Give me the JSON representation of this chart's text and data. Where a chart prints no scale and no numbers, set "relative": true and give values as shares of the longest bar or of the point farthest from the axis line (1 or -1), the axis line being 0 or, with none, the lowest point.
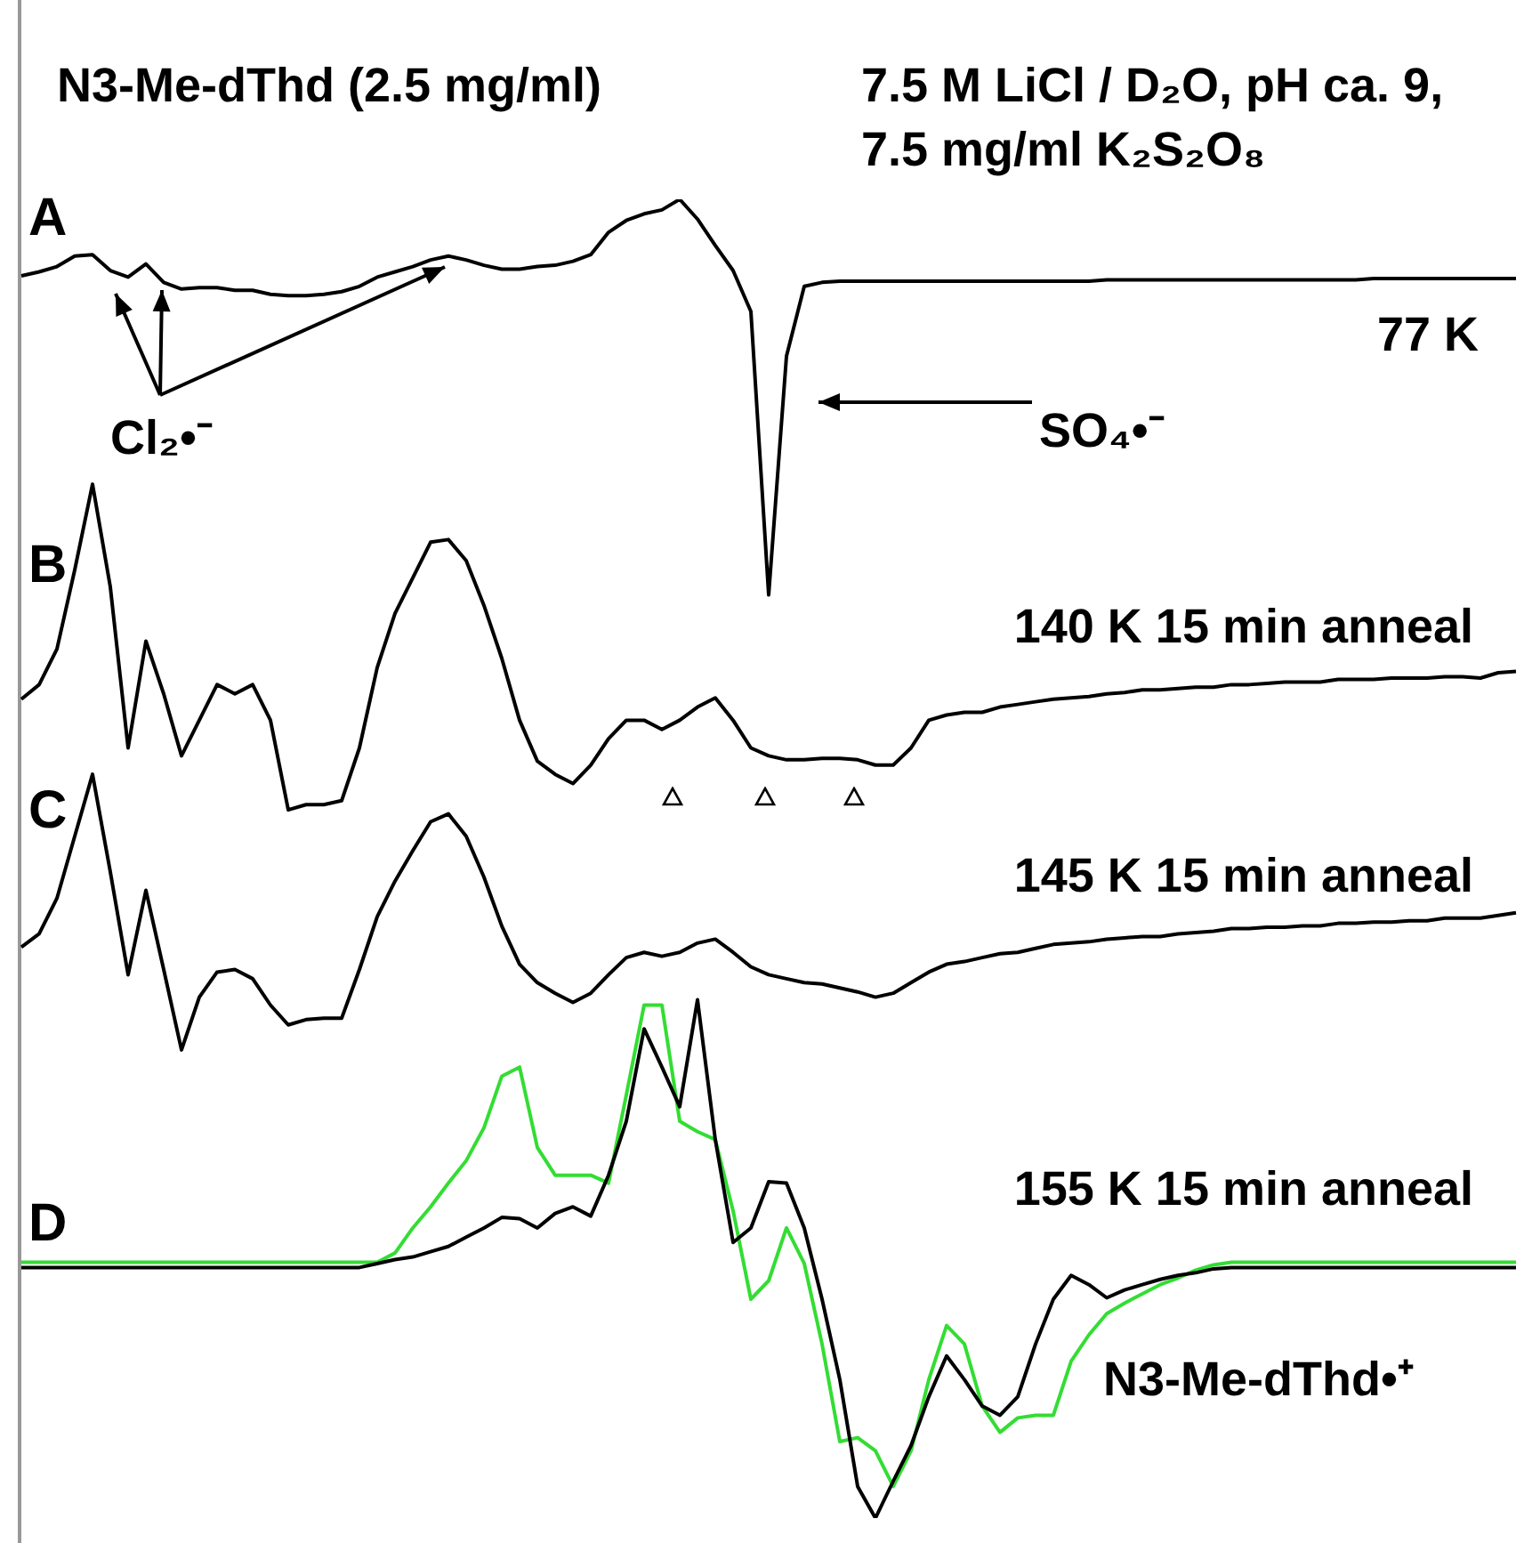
{
  "chart_data": {
    "type": "line",
    "relative": true,
    "title": "N3-Me-dThd (2.5 mg/ml)",
    "subtitle": "7.5 M LiCl / D₂O, pH ca. 9, 7.5 mg/ml K₂S₂O₈",
    "annotations": [
      "A",
      "B",
      "C",
      "D",
      "Cl₂•⁻",
      "SO₄•⁻"
    ],
    "categories": [
      null,
      null,
      null,
      null,
      null,
      null,
      null,
      null,
      null,
      null,
      null,
      null,
      null,
      null,
      null,
      null,
      null,
      null,
      null,
      null,
      null,
      null,
      null,
      null,
      null,
      null,
      null,
      null,
      null,
      null,
      null,
      null,
      null,
      null,
      null,
      null,
      null,
      null,
      null,
      null,
      null,
      null,
      null,
      null,
      null,
      null,
      null,
      null,
      null,
      null,
      null,
      null,
      null,
      null,
      null,
      null,
      null,
      null,
      null,
      null,
      null,
      null,
      null,
      null,
      null,
      null,
      null,
      null,
      null,
      null,
      null,
      null,
      null,
      null,
      null,
      null,
      null,
      null,
      null,
      null,
      null,
      null,
      null,
      null,
      null
    ],
    "series": [
      {
        "name": "77 K",
        "color": "#000000",
        "values": [
          0.942,
          0.945,
          0.949,
          0.957,
          0.958,
          0.946,
          0.941,
          0.951,
          0.937,
          0.932,
          0.933,
          0.933,
          0.931,
          0.931,
          0.928,
          0.927,
          0.927,
          0.928,
          0.93,
          0.934,
          0.941,
          0.945,
          0.949,
          0.954,
          0.957,
          0.954,
          0.95,
          0.947,
          0.947,
          0.949,
          0.95,
          0.953,
          0.958,
          0.975,
          0.984,
          0.989,
          0.992,
          1,
          0.985,
          0.965,
          0.946,
          0.915,
          0.7,
          0.881,
          0.934,
          0.937,
          0.938,
          0.938,
          0.938,
          0.938,
          0.938,
          0.938,
          0.938,
          0.938,
          0.938,
          0.938,
          0.938,
          0.938,
          0.938,
          0.938,
          0.938,
          0.939,
          0.939,
          0.939,
          0.939,
          0.939,
          0.939,
          0.939,
          0.939,
          0.939,
          0.939,
          0.939,
          0.939,
          0.939,
          0.939,
          0.939,
          0.94,
          0.94,
          0.94,
          0.94,
          0.94,
          0.94,
          0.94,
          0.94,
          0.94
        ]
      },
      {
        "name": "140 K 15 min anneal",
        "color": "#000000",
        "values": [
          0.621,
          0.632,
          0.659,
          0.719,
          0.784,
          0.706,
          0.584,
          0.665,
          0.625,
          0.578,
          0.605,
          0.632,
          0.625,
          0.632,
          0.605,
          0.537,
          0.541,
          0.541,
          0.544,
          0.584,
          0.645,
          0.686,
          0.713,
          0.74,
          0.742,
          0.726,
          0.692,
          0.652,
          0.605,
          0.574,
          0.564,
          0.557,
          0.571,
          0.591,
          0.605,
          0.605,
          0.598,
          0.605,
          0.615,
          0.622,
          0.605,
          0.584,
          0.578,
          0.575,
          0.575,
          0.576,
          0.576,
          0.575,
          0.571,
          0.571,
          0.584,
          0.605,
          0.609,
          0.611,
          0.611,
          0.615,
          0.617,
          0.619,
          0.621,
          0.622,
          0.623,
          0.625,
          0.626,
          0.628,
          0.628,
          0.629,
          0.63,
          0.63,
          0.632,
          0.632,
          0.633,
          0.634,
          0.634,
          0.634,
          0.636,
          0.636,
          0.636,
          0.637,
          0.637,
          0.637,
          0.638,
          0.638,
          0.637,
          0.641,
          0.642
        ]
      },
      {
        "name": "145 K 15 min anneal",
        "color": "#000000",
        "values": [
          0.433,
          0.443,
          0.47,
          0.517,
          0.564,
          0.49,
          0.412,
          0.476,
          0.416,
          0.355,
          0.395,
          0.414,
          0.416,
          0.409,
          0.389,
          0.374,
          0.378,
          0.379,
          0.379,
          0.416,
          0.456,
          0.483,
          0.506,
          0.528,
          0.534,
          0.517,
          0.486,
          0.449,
          0.42,
          0.406,
          0.398,
          0.391,
          0.398,
          0.412,
          0.425,
          0.429,
          0.426,
          0.429,
          0.436,
          0.439,
          0.429,
          0.418,
          0.412,
          0.409,
          0.406,
          0.405,
          0.402,
          0.399,
          0.395,
          0.398,
          0.406,
          0.414,
          0.42,
          0.422,
          0.425,
          0.428,
          0.429,
          0.432,
          0.435,
          0.436,
          0.437,
          0.439,
          0.44,
          0.441,
          0.441,
          0.443,
          0.444,
          0.445,
          0.447,
          0.447,
          0.448,
          0.448,
          0.449,
          0.449,
          0.451,
          0.451,
          0.452,
          0.452,
          0.453,
          0.453,
          0.455,
          0.455,
          0.455,
          0.457,
          0.459
        ]
      },
      {
        "name": "155 K 15 min anneal",
        "color": "#000000",
        "values": [
          0.19,
          0.19,
          0.19,
          0.19,
          0.19,
          0.19,
          0.19,
          0.19,
          0.19,
          0.19,
          0.19,
          0.19,
          0.19,
          0.19,
          0.19,
          0.19,
          0.19,
          0.19,
          0.19,
          0.19,
          0.193,
          0.196,
          0.198,
          0.202,
          0.206,
          0.213,
          0.22,
          0.228,
          0.227,
          0.22,
          0.231,
          0.236,
          0.229,
          0.26,
          0.301,
          0.371,
          0.342,
          0.312,
          0.393,
          0.287,
          0.209,
          0.22,
          0.255,
          0.254,
          0.22,
          0.166,
          0.105,
          0.024,
          0,
          0.028,
          0.055,
          0.092,
          0.123,
          0.105,
          0.085,
          0.078,
          0.092,
          0.132,
          0.166,
          0.184,
          0.177,
          0.167,
          0.173,
          0.177,
          0.181,
          0.184,
          0.186,
          0.189,
          0.19,
          0.19,
          0.19,
          0.19,
          0.19,
          0.19,
          0.19,
          0.19,
          0.19,
          0.19,
          0.19,
          0.19,
          0.19,
          0.19,
          0.19,
          0.19,
          0.19
        ]
      },
      {
        "name": "N3-Me-dThd•⁺",
        "color": "#33dd33",
        "values": [
          0.194,
          0.194,
          0.194,
          0.194,
          0.194,
          0.194,
          0.194,
          0.194,
          0.194,
          0.194,
          0.194,
          0.194,
          0.194,
          0.194,
          0.194,
          0.194,
          0.194,
          0.194,
          0.194,
          0.194,
          0.194,
          0.201,
          0.22,
          0.236,
          0.254,
          0.271,
          0.296,
          0.335,
          0.342,
          0.281,
          0.26,
          0.26,
          0.26,
          0.254,
          0.321,
          0.389,
          0.389,
          0.301,
          0.293,
          0.287,
          0.233,
          0.166,
          0.18,
          0.22,
          0.193,
          0.132,
          0.058,
          0.061,
          0.051,
          0.024,
          0.051,
          0.105,
          0.146,
          0.132,
          0.085,
          0.065,
          0.076,
          0.078,
          0.078,
          0.119,
          0.139,
          0.155,
          0.163,
          0.17,
          0.177,
          0.182,
          0.188,
          0.192,
          0.194,
          0.194,
          0.194,
          0.194,
          0.194,
          0.194,
          0.194,
          0.194,
          0.194,
          0.194,
          0.194,
          0.194,
          0.194,
          0.194,
          0.194,
          0.194,
          0.194
        ]
      }
    ]
  }
}
